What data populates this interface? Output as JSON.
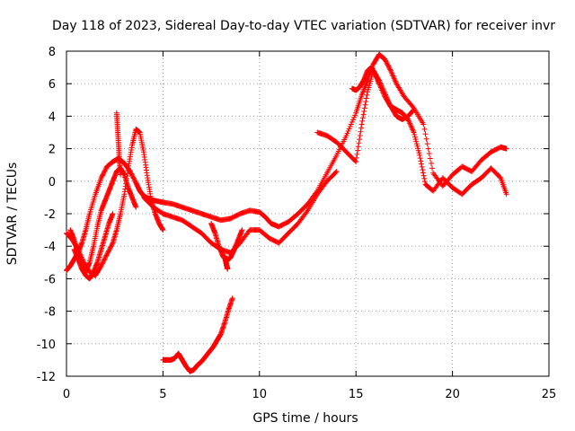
{
  "chart_data": {
    "type": "scatter",
    "title": "Day 118 of 2023, Sidereal Day-to-day VTEC variation (SDTVAR) for receiver invr",
    "xlabel": "GPS time / hours",
    "ylabel": "SDTVAR / TECUs",
    "xlim": [
      0,
      25
    ],
    "ylim": [
      -12,
      8
    ],
    "xticks": [
      0,
      5,
      10,
      15,
      20,
      25
    ],
    "yticks": [
      -12,
      -10,
      -8,
      -6,
      -4,
      -2,
      0,
      2,
      4,
      6,
      8
    ],
    "grid": true,
    "marker": "+",
    "series": [
      {
        "name": "arc-a",
        "color": "#ff0000",
        "x": [
          0.0,
          0.2,
          0.4,
          0.6,
          0.8,
          1.0,
          1.2,
          1.5,
          1.8,
          2.1,
          2.4,
          2.7,
          3.0,
          3.3,
          3.6,
          3.8,
          4.0,
          4.3,
          4.6,
          5.0,
          5.5,
          6.0,
          6.5,
          7.0,
          7.5,
          8.0,
          8.5,
          9.0,
          9.5,
          10.0,
          10.3,
          10.6,
          11.0,
          11.5,
          12.0,
          12.5,
          13.0,
          13.5,
          14.0,
          14.5,
          15.0,
          15.3,
          15.6,
          15.9,
          16.2,
          16.5,
          16.8,
          17.1,
          17.5,
          18.0,
          18.5,
          19.0,
          19.5,
          20.0,
          20.5,
          21.0,
          21.5,
          22.0,
          22.5,
          22.8
        ],
        "y": [
          -5.5,
          -5.2,
          -4.8,
          -4.4,
          -3.8,
          -3.0,
          -2.0,
          -0.8,
          0.2,
          0.9,
          1.2,
          1.4,
          1.1,
          0.6,
          -0.1,
          -0.6,
          -0.9,
          -1.1,
          -1.2,
          -1.3,
          -1.4,
          -1.6,
          -1.8,
          -2.0,
          -2.2,
          -2.4,
          -2.3,
          -2.0,
          -1.8,
          -1.9,
          -2.2,
          -2.6,
          -2.8,
          -2.5,
          -2.0,
          -1.4,
          -0.6,
          0.5,
          1.6,
          2.8,
          4.2,
          5.3,
          6.2,
          7.2,
          7.8,
          7.5,
          6.8,
          6.0,
          5.2,
          4.5,
          3.5,
          0.5,
          -0.3,
          0.4,
          0.9,
          0.6,
          1.3,
          1.8,
          2.1,
          2.0
        ]
      },
      {
        "name": "arc-b",
        "color": "#ff0000",
        "x": [
          0.0,
          0.3,
          0.6,
          0.9,
          1.2,
          1.5,
          1.8,
          2.1,
          2.4,
          2.6,
          2.8,
          3.0,
          3.2,
          3.4,
          3.6,
          3.8,
          4.0,
          4.2,
          4.4,
          4.6,
          4.8,
          5.0
        ],
        "y": [
          -3.2,
          -3.6,
          -4.2,
          -5.0,
          -5.6,
          -5.8,
          -5.2,
          -4.5,
          -3.8,
          -3.0,
          -2.0,
          -0.8,
          0.8,
          2.2,
          3.2,
          3.0,
          1.8,
          0.2,
          -1.2,
          -2.0,
          -2.6,
          -3.0
        ]
      },
      {
        "name": "arc-c",
        "color": "#ff0000",
        "x": [
          0.2,
          0.4,
          0.6,
          0.8,
          1.0,
          1.2,
          1.4,
          1.6,
          1.8,
          2.0,
          2.2,
          2.4,
          2.6,
          2.8,
          3.0,
          3.2,
          3.4,
          3.6
        ],
        "y": [
          -3.0,
          -3.6,
          -4.4,
          -5.2,
          -5.6,
          -5.0,
          -4.0,
          -2.8,
          -1.8,
          -1.2,
          -0.6,
          0.0,
          0.6,
          0.8,
          0.4,
          -0.4,
          -1.0,
          -1.6
        ]
      },
      {
        "name": "arc-d",
        "color": "#ff0000",
        "x": [
          0.4,
          0.6,
          0.8,
          1.0,
          1.2,
          1.4,
          1.6,
          1.8,
          2.0,
          2.2,
          2.4
        ],
        "y": [
          -4.2,
          -4.8,
          -5.4,
          -5.8,
          -6.0,
          -5.6,
          -5.0,
          -4.2,
          -3.4,
          -2.6,
          -2.0
        ]
      },
      {
        "name": "arc-e",
        "color": "#ff0000",
        "x": [
          7.5,
          7.7,
          7.9,
          8.1,
          8.3,
          8.5,
          8.7,
          8.9,
          9.1
        ],
        "y": [
          -2.6,
          -3.2,
          -4.0,
          -4.6,
          -4.9,
          -4.7,
          -4.2,
          -3.6,
          -3.0
        ]
      },
      {
        "name": "arc-f",
        "color": "#ff0000",
        "x": [
          4.0,
          4.5,
          5.0,
          5.5,
          6.0,
          6.5,
          7.0,
          7.5,
          8.0,
          8.5,
          9.0,
          9.5,
          10.0,
          10.5,
          11.0,
          11.5,
          12.0,
          12.5,
          13.0,
          13.5,
          14.0
        ],
        "y": [
          -1.0,
          -1.6,
          -2.0,
          -2.2,
          -2.4,
          -2.8,
          -3.2,
          -3.8,
          -4.2,
          -4.4,
          -3.8,
          -3.0,
          -3.0,
          -3.5,
          -3.8,
          -3.2,
          -2.6,
          -1.8,
          -0.8,
          0.0,
          0.6
        ]
      },
      {
        "name": "arc-g",
        "color": "#ff0000",
        "x": [
          13.0,
          13.5,
          14.0,
          14.5,
          15.0,
          15.3,
          15.6,
          15.9,
          16.2,
          16.5,
          16.8,
          17.1,
          17.4,
          17.7,
          18.0,
          18.3,
          18.6,
          19.0,
          19.5,
          20.0,
          20.5,
          21.0,
          21.5,
          22.0,
          22.5,
          22.8
        ],
        "y": [
          3.0,
          2.8,
          2.4,
          1.8,
          1.2,
          3.5,
          5.5,
          6.8,
          6.2,
          5.4,
          4.6,
          4.4,
          4.2,
          3.8,
          3.0,
          1.6,
          -0.2,
          -0.6,
          0.2,
          -0.4,
          -0.8,
          -0.2,
          0.2,
          0.8,
          0.2,
          -0.8
        ]
      },
      {
        "name": "arc-h",
        "color": "#ff0000",
        "x": [
          14.8,
          15.0,
          15.2,
          15.4,
          15.6,
          15.8,
          16.0,
          16.2,
          16.5,
          16.8,
          17.1,
          17.4,
          17.7,
          18.0
        ],
        "y": [
          5.7,
          5.6,
          5.8,
          6.2,
          6.8,
          7.0,
          6.6,
          6.0,
          5.2,
          4.6,
          4.0,
          3.8,
          4.0,
          4.4
        ]
      },
      {
        "name": "arc-i",
        "color": "#ff0000",
        "x": [
          5.0,
          5.2,
          5.4,
          5.6,
          5.8,
          6.0,
          6.2,
          6.4,
          6.6,
          6.8,
          7.0,
          7.2,
          7.4,
          7.6,
          7.8,
          8.0,
          8.2,
          8.4,
          8.6
        ],
        "y": [
          -11.0,
          -11.0,
          -11.0,
          -10.9,
          -10.6,
          -11.0,
          -11.4,
          -11.7,
          -11.6,
          -11.3,
          -11.1,
          -10.8,
          -10.5,
          -10.2,
          -9.8,
          -9.4,
          -8.7,
          -7.9,
          -7.2
        ]
      },
      {
        "name": "arc-j",
        "color": "#ff0000",
        "x": [
          2.6,
          2.65,
          2.7,
          2.75,
          2.8
        ],
        "y": [
          4.2,
          3.2,
          2.2,
          1.2,
          0.4
        ]
      },
      {
        "name": "arc-k",
        "color": "#ff0000",
        "x": [
          8.2,
          8.25,
          8.3,
          8.35
        ],
        "y": [
          -4.6,
          -4.9,
          -5.2,
          -5.4
        ]
      }
    ]
  }
}
